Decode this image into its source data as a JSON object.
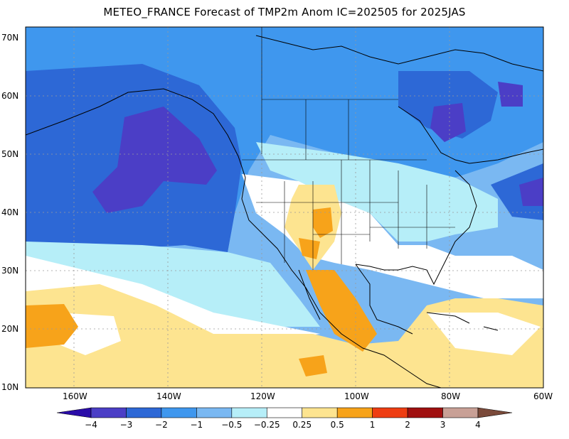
{
  "title": "METEO_FRANCE Forecast of TMP2m Anom IC=202505 for 2025JAS",
  "lat_labels": [
    "70N",
    "60N",
    "50N",
    "40N",
    "30N",
    "20N",
    "10N"
  ],
  "lon_labels": [
    "160W",
    "140W",
    "120W",
    "100W",
    "80W",
    "60W"
  ],
  "colorbar": {
    "labels": [
      "−4",
      "−3",
      "−2",
      "−1",
      "−0.5",
      "−0.25",
      "0.25",
      "0.5",
      "1",
      "2",
      "3",
      "4"
    ],
    "colors": [
      "#2a0ca8",
      "#4b3ec6",
      "#2d68d6",
      "#3f97ee",
      "#7ab8f2",
      "#b6eef8",
      "#ffffff",
      "#fde490",
      "#f7a31a",
      "#ee3d12",
      "#a01010",
      "#c8a096",
      "#7a4a3a"
    ]
  }
}
